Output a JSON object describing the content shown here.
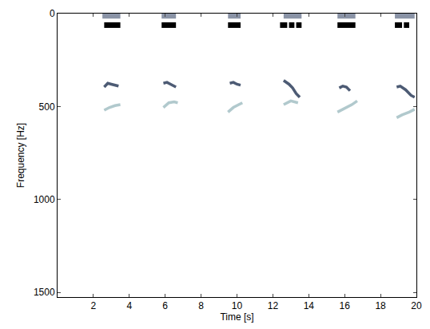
{
  "chart_data": {
    "type": "line",
    "xlabel": "Time [s]",
    "ylabel": "Frequency [Hz]",
    "xlim": [
      0,
      20
    ],
    "ylim": [
      1525,
      0
    ],
    "xticks": [
      2,
      4,
      6,
      8,
      10,
      12,
      14,
      16,
      18,
      20
    ],
    "yticks": [
      0,
      500,
      1000,
      1500
    ],
    "grid": false,
    "series": [
      {
        "type": "line",
        "color": "#3a4a66",
        "x": [
          2.6,
          2.8,
          3.0,
          3.2,
          3.4,
          null,
          5.9,
          6.1,
          6.3,
          6.6,
          null,
          9.6,
          9.8,
          10.0,
          10.2,
          null,
          12.6,
          12.9,
          13.1,
          13.3,
          13.5,
          null,
          15.7,
          15.9,
          16.1,
          16.3,
          null,
          18.9,
          19.1,
          19.4,
          19.7,
          19.9
        ],
        "values": [
          395,
          375,
          380,
          385,
          390,
          null,
          375,
          370,
          380,
          395,
          null,
          375,
          370,
          380,
          385,
          null,
          360,
          380,
          400,
          430,
          450,
          null,
          400,
          390,
          395,
          415,
          null,
          395,
          390,
          410,
          440,
          450
        ]
      },
      {
        "type": "line",
        "color": "#a9c4c8",
        "x": [
          2.6,
          2.9,
          3.2,
          3.5,
          null,
          5.9,
          6.2,
          6.5,
          6.7,
          null,
          9.5,
          9.8,
          10.1,
          10.3,
          null,
          12.6,
          13.0,
          13.4,
          null,
          15.6,
          16.0,
          16.4,
          16.7,
          null,
          18.9,
          19.2,
          19.6,
          19.9
        ],
        "values": [
          520,
          505,
          495,
          490,
          null,
          505,
          480,
          475,
          480,
          null,
          530,
          505,
          490,
          480,
          null,
          490,
          470,
          480,
          null,
          530,
          510,
          490,
          470,
          null,
          560,
          545,
          530,
          515
        ]
      },
      {
        "type": "segments",
        "color": "#8a93a6",
        "x": [
          2.5,
          3.5,
          null,
          5.8,
          6.6,
          null,
          9.5,
          10.2,
          null,
          12.6,
          13.6,
          null,
          15.6,
          16.6,
          null,
          18.8,
          19.9
        ],
        "values": [
          12,
          12,
          null,
          12,
          12,
          null,
          12,
          12,
          null,
          12,
          12,
          null,
          12,
          12,
          null,
          12,
          12
        ]
      },
      {
        "type": "segments",
        "color": "#000000",
        "x": [
          2.6,
          3.5,
          null,
          5.8,
          6.6,
          null,
          9.5,
          10.2,
          null,
          12.4,
          12.8,
          null,
          12.9,
          13.2,
          null,
          13.3,
          13.6,
          null,
          15.6,
          16.6,
          null,
          18.8,
          19.2,
          null,
          19.3,
          19.6
        ],
        "values": [
          62,
          62,
          null,
          62,
          62,
          null,
          62,
          62,
          null,
          62,
          62,
          null,
          62,
          62,
          null,
          62,
          62,
          null,
          62,
          62,
          null,
          62,
          62,
          null,
          62,
          62
        ]
      }
    ]
  }
}
